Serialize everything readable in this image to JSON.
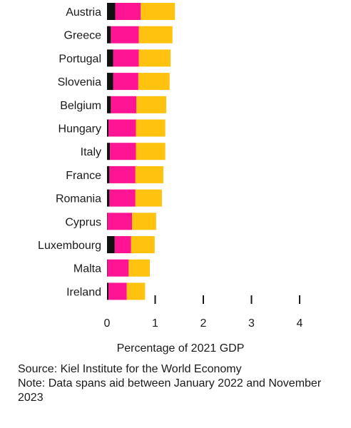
{
  "chart_data": {
    "type": "bar",
    "orientation": "horizontal",
    "stacked": true,
    "categories": [
      "Austria",
      "Greece",
      "Portugal",
      "Slovenia",
      "Belgium",
      "Hungary",
      "Italy",
      "France",
      "Romania",
      "Cyprus",
      "Luxembourg",
      "Malta",
      "Ireland"
    ],
    "series": [
      {
        "color": "#111111",
        "values": [
          0.17,
          0.08,
          0.13,
          0.13,
          0.08,
          0.03,
          0.06,
          0.05,
          0.05,
          0.01,
          0.16,
          0.01,
          0.03
        ]
      },
      {
        "color": "#ff1493",
        "values": [
          0.53,
          0.58,
          0.53,
          0.52,
          0.53,
          0.57,
          0.54,
          0.54,
          0.54,
          0.51,
          0.34,
          0.44,
          0.38
        ]
      },
      {
        "color": "#ffc20e",
        "values": [
          0.71,
          0.7,
          0.66,
          0.65,
          0.62,
          0.61,
          0.61,
          0.58,
          0.55,
          0.5,
          0.49,
          0.44,
          0.38
        ]
      }
    ],
    "xlim": [
      0,
      4.15
    ],
    "xticks": [
      0,
      1,
      2,
      3,
      4
    ],
    "xlabel": "Percentage of 2021 GDP"
  },
  "footer": {
    "source": "Source: Kiel Institute for the World Economy",
    "note": "Note: Data spans aid between January 2022 and November 2023"
  }
}
